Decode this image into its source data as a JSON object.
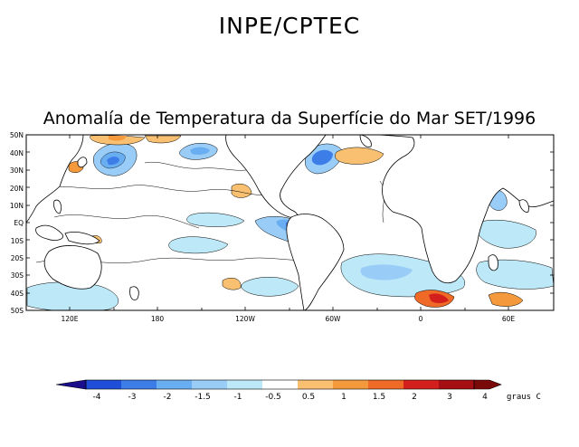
{
  "header": {
    "organization": "INPE/CPTEC"
  },
  "map": {
    "title": "Anomalía de Temperatura da Superfície do Mar SET/1996",
    "lat_labels": [
      "50N",
      "40N",
      "30N",
      "20N",
      "10N",
      "EQ",
      "10S",
      "20S",
      "30S",
      "40S",
      "50S"
    ],
    "lon_labels": [
      "120E",
      "180",
      "120W",
      "60W",
      "0",
      "60E"
    ],
    "land_color": "#ffffff",
    "contour_color": "#000000"
  },
  "legend": {
    "tick_labels": [
      "-4",
      "-3",
      "-2",
      "-1.5",
      "-1",
      "-0.5",
      "0.5",
      "1",
      "1.5",
      "2",
      "3",
      "4"
    ],
    "colors": [
      "#1a0e8c",
      "#1f4fd8",
      "#3d7de8",
      "#6aaef2",
      "#99cdf8",
      "#bde8f8",
      "#ffffff",
      "#f8c070",
      "#f59a3c",
      "#ee6a26",
      "#d3201c",
      "#a50f14",
      "#7a0a0a"
    ],
    "unit": "graus C"
  }
}
